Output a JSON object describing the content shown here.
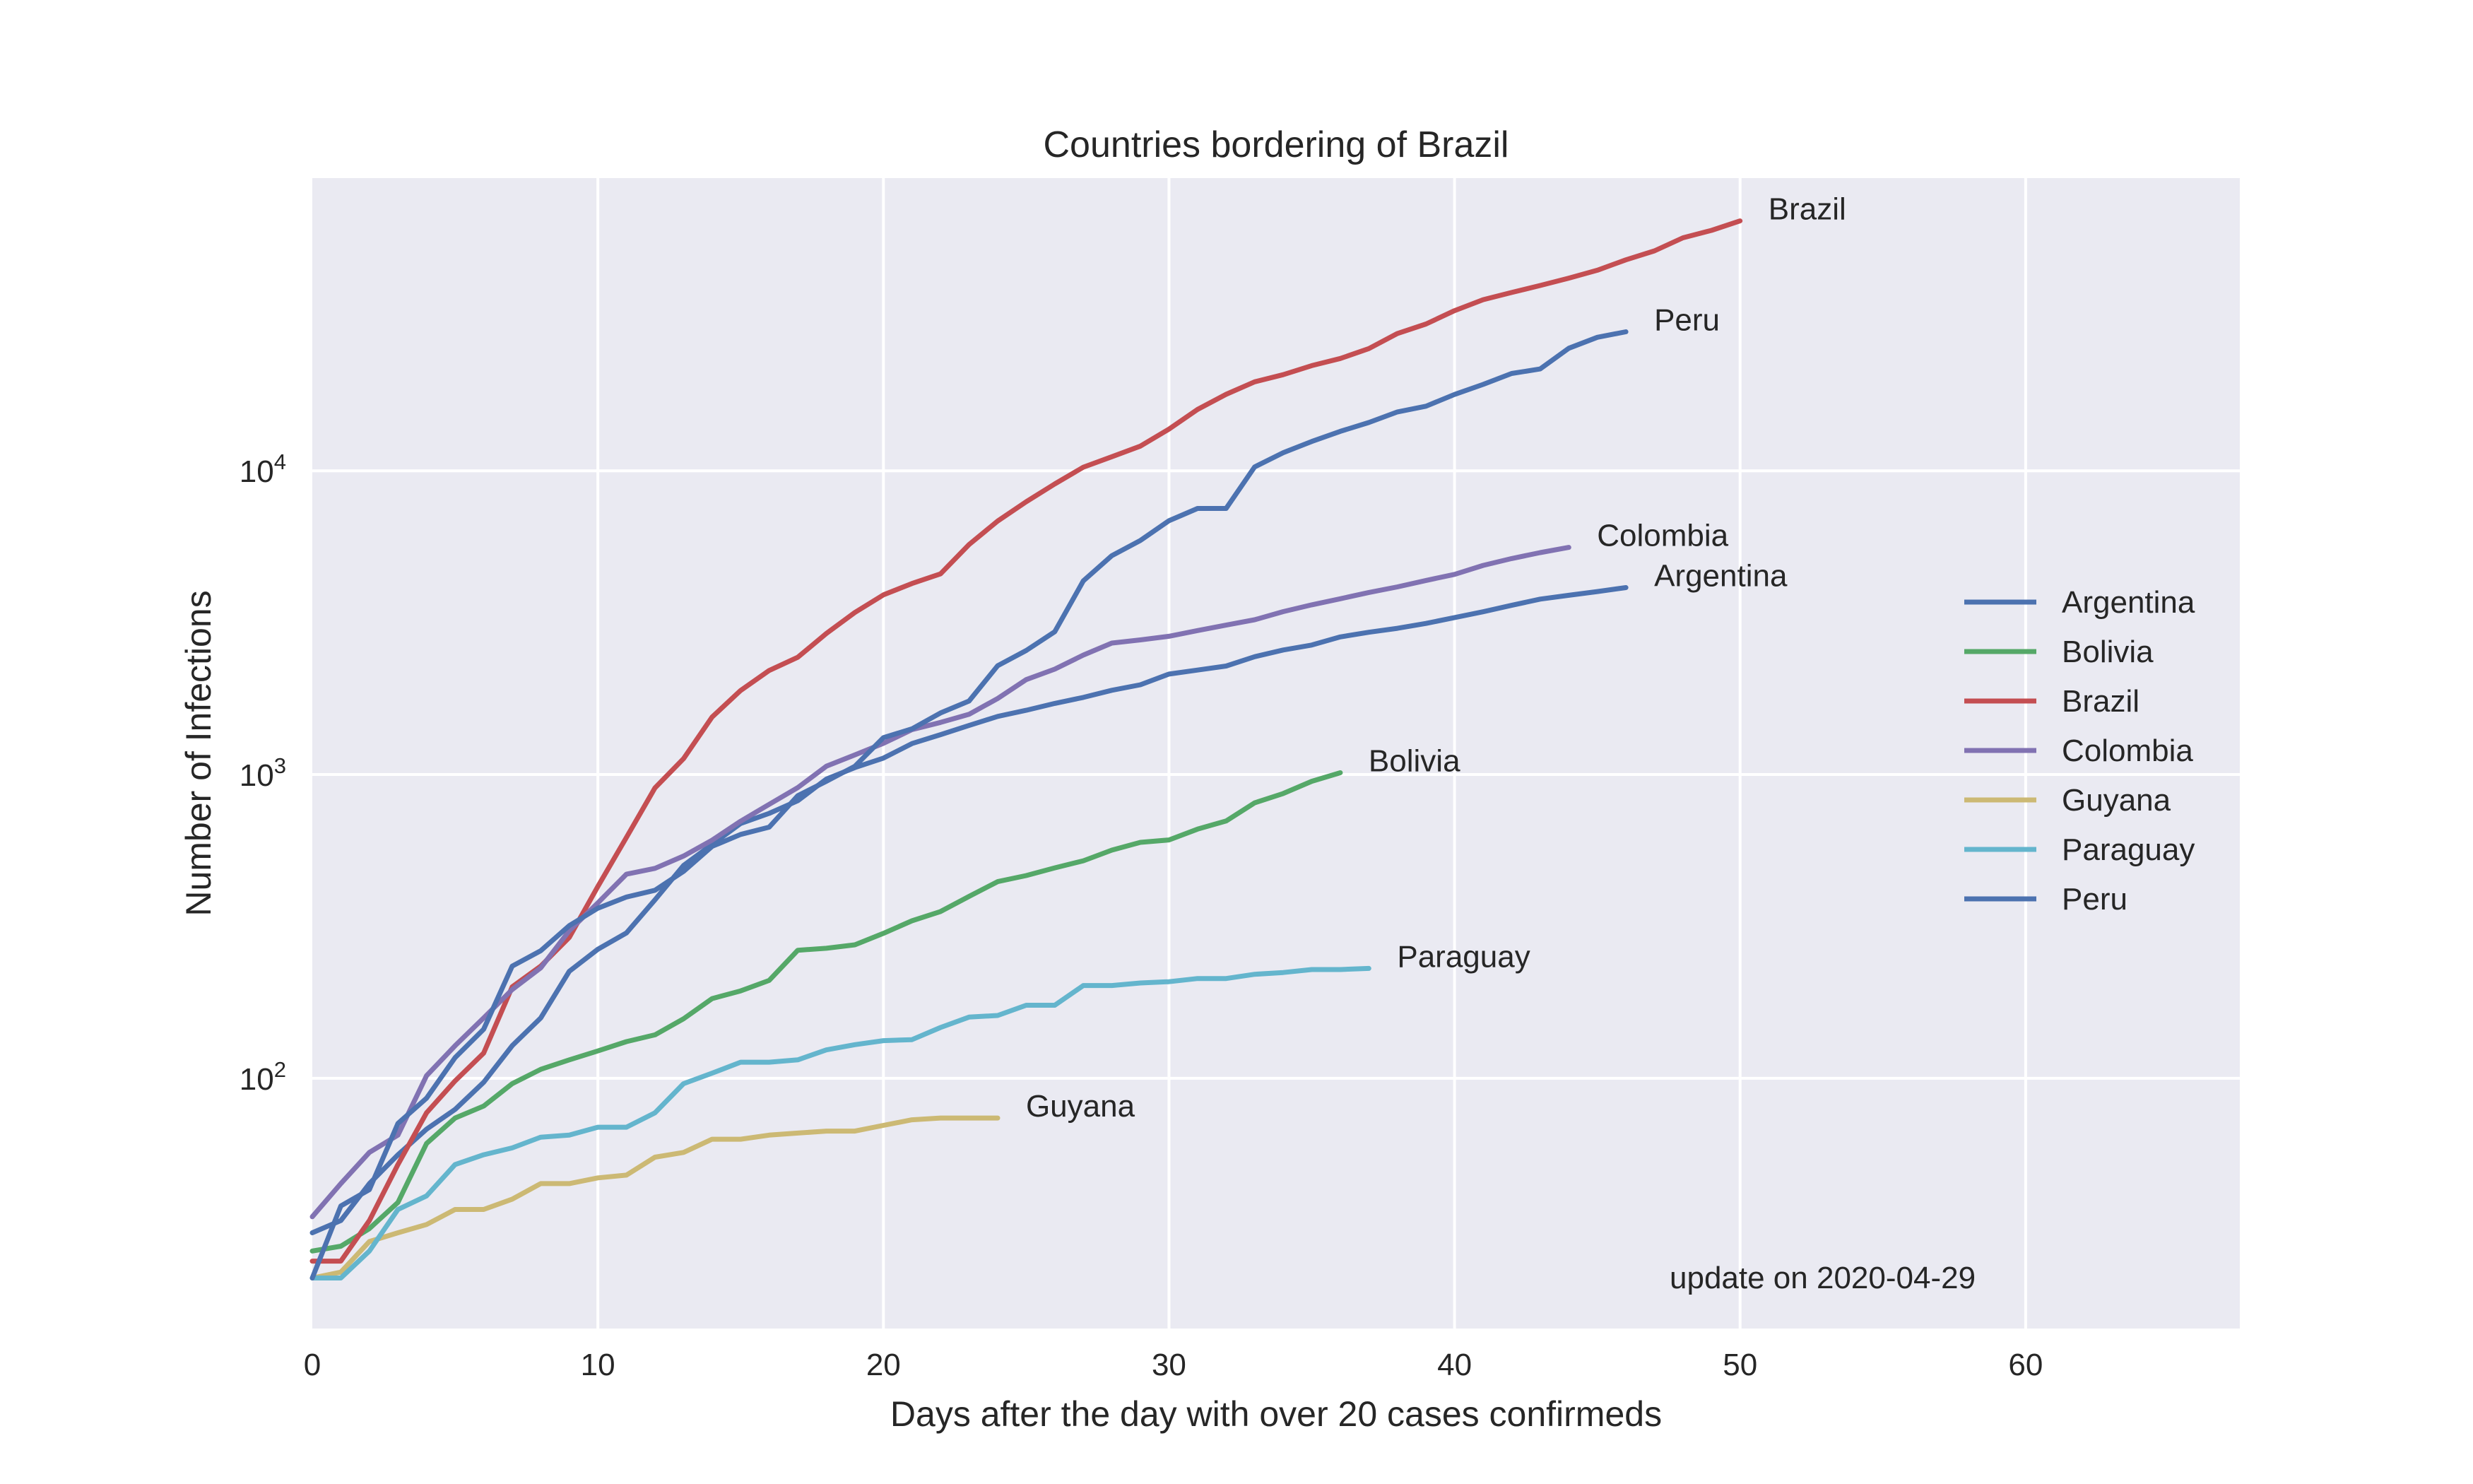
{
  "chart_data": {
    "type": "line",
    "title": "Countries bordering of Brazil",
    "xlabel": "Days after the day with over 20 cases confirmeds",
    "ylabel": "Number of Infections",
    "annotation": "update on 2020-04-29",
    "xlim": [
      0,
      67.5
    ],
    "ylim": [
      15,
      92000
    ],
    "yscale": "log",
    "grid": true,
    "legend_position": "right",
    "x_ticks": [
      0,
      10,
      20,
      30,
      40,
      50,
      60
    ],
    "y_ticks": [
      {
        "value": 100,
        "base": "10",
        "exp": "2"
      },
      {
        "value": 1000,
        "base": "10",
        "exp": "3"
      },
      {
        "value": 10000,
        "base": "10",
        "exp": "4"
      }
    ],
    "series": [
      {
        "name": "Argentina",
        "color": "#4c72b0",
        "values": [
          31,
          34,
          45,
          56,
          68,
          79,
          97,
          128,
          158,
          225,
          266,
          301,
          387,
          502,
          589,
          690,
          745,
          820,
          966,
          1054,
          1133,
          1265,
          1353,
          1451,
          1554,
          1628,
          1715,
          1795,
          1894,
          1975,
          2142,
          2208,
          2277,
          2443,
          2571,
          2669,
          2839,
          2941,
          3031,
          3144,
          3288,
          3435,
          3607,
          3780,
          3892,
          4003,
          4127
        ]
      },
      {
        "name": "Bolivia",
        "color": "#55a868",
        "values": [
          27,
          28,
          32,
          39,
          61,
          74,
          81,
          96,
          107,
          115,
          123,
          132,
          139,
          157,
          183,
          194,
          210,
          264,
          268,
          275,
          300,
          330,
          354,
          397,
          444,
          465,
          493,
          520,
          564,
          598,
          609,
          661,
          703,
          807,
          866,
          950,
          1014
        ]
      },
      {
        "name": "Brazil",
        "color": "#c44e52",
        "values": [
          25,
          25,
          34,
          52,
          77,
          98,
          121,
          200,
          234,
          291,
          428,
          621,
          904,
          1128,
          1546,
          1891,
          2201,
          2433,
          2915,
          3417,
          3904,
          4256,
          4579,
          5717,
          6836,
          7910,
          9056,
          10278,
          11130,
          12056,
          13717,
          15927,
          17857,
          19638,
          20727,
          22192,
          23430,
          25262,
          28320,
          30425,
          33682,
          36599,
          38654,
          40743,
          43079,
          45757,
          49492,
          52995,
          58509,
          61888,
          66501
        ]
      },
      {
        "name": "Colombia",
        "color": "#8172b2",
        "values": [
          35,
          45,
          57,
          65,
          102,
          128,
          158,
          196,
          231,
          306,
          378,
          470,
          491,
          539,
          608,
          702,
          798,
          906,
          1065,
          1161,
          1267,
          1406,
          1485,
          1579,
          1780,
          2054,
          2223,
          2473,
          2709,
          2776,
          2852,
          2979,
          3105,
          3233,
          3439,
          3621,
          3792,
          3977,
          4149,
          4356,
          4561,
          4881,
          5142,
          5379,
          5597
        ]
      },
      {
        "name": "Guyana",
        "color": "#ccb974",
        "values": [
          22,
          23,
          29,
          31,
          33,
          37,
          37,
          40,
          45,
          45,
          47,
          48,
          55,
          57,
          63,
          63,
          65,
          66,
          67,
          67,
          70,
          73,
          74,
          74,
          74
        ]
      },
      {
        "name": "Paraguay",
        "color": "#64b5cd",
        "values": [
          22,
          22,
          27,
          37,
          41,
          52,
          56,
          59,
          64,
          65,
          69,
          69,
          77,
          96,
          104,
          113,
          113,
          115,
          124,
          129,
          133,
          134,
          147,
          159,
          161,
          174,
          174,
          202,
          202,
          206,
          208,
          213,
          213,
          220,
          223,
          228,
          228,
          230
        ]
      },
      {
        "name": "Peru",
        "color": "#4c72b0",
        "values": [
          22,
          38,
          43,
          71,
          86,
          117,
          145,
          234,
          263,
          318,
          363,
          395,
          416,
          480,
          580,
          635,
          671,
          852,
          950,
          1065,
          1323,
          1414,
          1595,
          1746,
          2281,
          2561,
          2954,
          4342,
          5256,
          5897,
          6848,
          7519,
          7519,
          10303,
          11475,
          12491,
          13489,
          14420,
          15628,
          16325,
          17837,
          19250,
          20914,
          21648,
          25331,
          27517,
          28699
        ]
      }
    ]
  }
}
